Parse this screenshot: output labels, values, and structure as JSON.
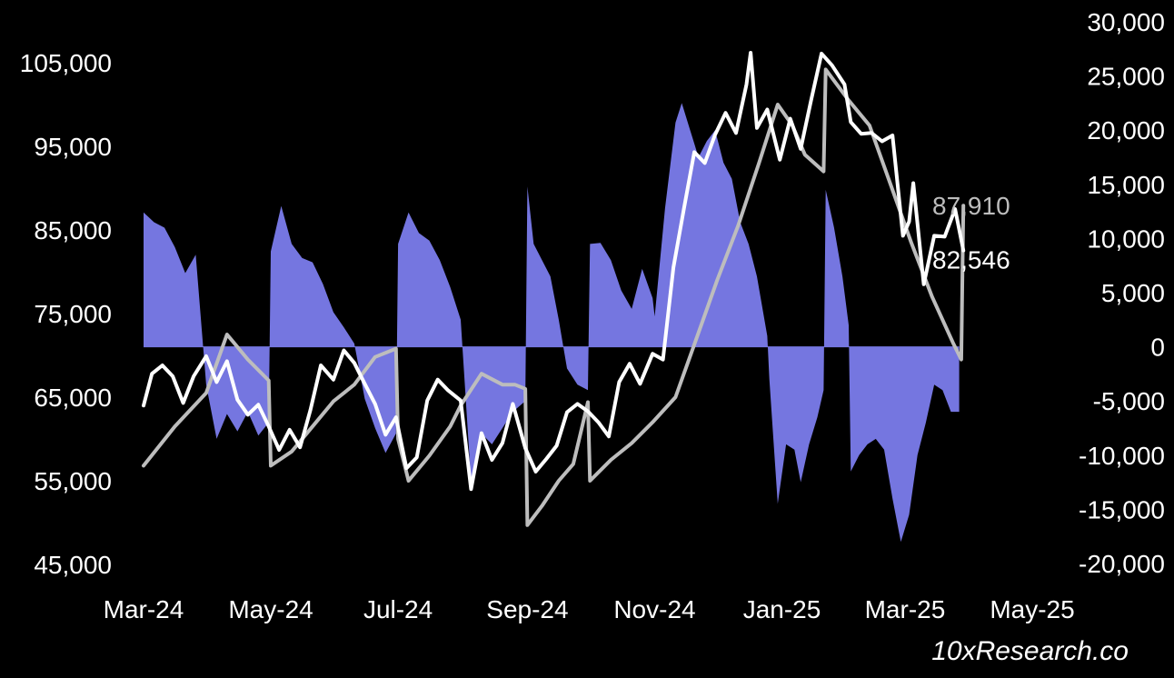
{
  "watermark": "10xResearch.co",
  "colors": {
    "background": "#000000",
    "bars": "#7576e0",
    "price": "#ffffff",
    "avg": "#bdbdbd"
  },
  "chart_data": {
    "type": "line",
    "title": "",
    "xlabel": "",
    "ylabel_left": "",
    "ylabel_right": "",
    "x_ticks": [
      "Mar-24",
      "May-24",
      "Jul-24",
      "Sep-24",
      "Nov-24",
      "Jan-25",
      "Mar-25",
      "May-25"
    ],
    "x_range": [
      "2024-03-01",
      "2025-05-01"
    ],
    "y_left_ticks": [
      "105,000",
      "95,000",
      "85,000",
      "75,000",
      "65,000",
      "55,000",
      "45,000"
    ],
    "y_left_range": [
      45000,
      105000
    ],
    "y_right_ticks": [
      "30,000",
      "25,000",
      "20,000",
      "15,000",
      "10,000",
      "5,000",
      "0",
      "-5,000",
      "-10,000",
      "-15,000",
      "-20,000"
    ],
    "y_right_range": [
      -20000,
      30000
    ],
    "grid": false,
    "legend": "none",
    "end_labels": {
      "avg": "87,910",
      "price": "82,546"
    },
    "series": [
      {
        "key": "spread",
        "kind": "area",
        "axis": "right",
        "points": [
          [
            "2024-03-01",
            12400
          ],
          [
            "2024-03-06",
            11500
          ],
          [
            "2024-03-11",
            11000
          ],
          [
            "2024-03-16",
            9200
          ],
          [
            "2024-03-21",
            6800
          ],
          [
            "2024-03-26",
            8500
          ],
          [
            "2024-03-31",
            -3500
          ],
          [
            "2024-04-05",
            -8500
          ],
          [
            "2024-04-10",
            -6200
          ],
          [
            "2024-04-15",
            -7800
          ],
          [
            "2024-04-20",
            -6000
          ],
          [
            "2024-04-25",
            -8200
          ],
          [
            "2024-04-30",
            -7000
          ],
          [
            "2024-05-01",
            8800
          ],
          [
            "2024-05-06",
            13000
          ],
          [
            "2024-05-11",
            9500
          ],
          [
            "2024-05-16",
            8200
          ],
          [
            "2024-05-21",
            7800
          ],
          [
            "2024-05-26",
            5800
          ],
          [
            "2024-05-31",
            3200
          ],
          [
            "2024-06-05",
            1800
          ],
          [
            "2024-06-10",
            300
          ],
          [
            "2024-06-15",
            -4800
          ],
          [
            "2024-06-20",
            -7500
          ],
          [
            "2024-06-25",
            -9800
          ],
          [
            "2024-06-30",
            -8000
          ],
          [
            "2024-07-01",
            9500
          ],
          [
            "2024-07-06",
            12400
          ],
          [
            "2024-07-11",
            10500
          ],
          [
            "2024-07-16",
            9800
          ],
          [
            "2024-07-21",
            8000
          ],
          [
            "2024-07-26",
            5500
          ],
          [
            "2024-07-31",
            2500
          ],
          [
            "2024-08-05",
            -12500
          ],
          [
            "2024-08-10",
            -8000
          ],
          [
            "2024-08-15",
            -9000
          ],
          [
            "2024-08-20",
            -7500
          ],
          [
            "2024-08-25",
            -6000
          ],
          [
            "2024-08-31",
            -5000
          ],
          [
            "2024-09-01",
            14800
          ],
          [
            "2024-09-04",
            9500
          ],
          [
            "2024-09-08",
            8000
          ],
          [
            "2024-09-12",
            6500
          ],
          [
            "2024-09-16",
            2500
          ],
          [
            "2024-09-20",
            -2000
          ],
          [
            "2024-09-25",
            -3500
          ],
          [
            "2024-09-30",
            -4000
          ],
          [
            "2024-10-01",
            9500
          ],
          [
            "2024-10-06",
            9600
          ],
          [
            "2024-10-11",
            8000
          ],
          [
            "2024-10-16",
            5200
          ],
          [
            "2024-10-21",
            3500
          ],
          [
            "2024-10-26",
            7200
          ],
          [
            "2024-10-31",
            4500
          ],
          [
            "2024-11-01",
            2800
          ],
          [
            "2024-11-06",
            12800
          ],
          [
            "2024-11-11",
            20700
          ],
          [
            "2024-11-14",
            22500
          ],
          [
            "2024-11-18",
            20000
          ],
          [
            "2024-11-22",
            17500
          ],
          [
            "2024-11-26",
            19000
          ],
          [
            "2024-11-30",
            20000
          ],
          [
            "2024-12-04",
            17000
          ],
          [
            "2024-12-08",
            15500
          ],
          [
            "2024-12-12",
            11500
          ],
          [
            "2024-12-16",
            9500
          ],
          [
            "2024-12-20",
            6500
          ],
          [
            "2024-12-25",
            1000
          ],
          [
            "2024-12-26",
            -3000
          ],
          [
            "2024-12-30",
            -14500
          ],
          [
            "2025-01-03",
            -9000
          ],
          [
            "2025-01-07",
            -9500
          ],
          [
            "2025-01-10",
            -12500
          ],
          [
            "2025-01-14",
            -9000
          ],
          [
            "2025-01-18",
            -6500
          ],
          [
            "2025-01-21",
            -4000
          ],
          [
            "2025-01-22",
            14500
          ],
          [
            "2025-01-26",
            11000
          ],
          [
            "2025-01-30",
            6500
          ],
          [
            "2025-02-02",
            2000
          ],
          [
            "2025-02-03",
            -11500
          ],
          [
            "2025-02-07",
            -10000
          ],
          [
            "2025-02-11",
            -9000
          ],
          [
            "2025-02-15",
            -8500
          ],
          [
            "2025-02-19",
            -9500
          ],
          [
            "2025-02-23",
            -14000
          ],
          [
            "2025-02-27",
            -18000
          ],
          [
            "2025-03-03",
            -15500
          ],
          [
            "2025-03-07",
            -10000
          ],
          [
            "2025-03-11",
            -7000
          ],
          [
            "2025-03-15",
            -3500
          ],
          [
            "2025-03-19",
            -4000
          ],
          [
            "2025-03-23",
            -6000
          ],
          [
            "2025-03-27",
            -6000
          ]
        ]
      },
      {
        "key": "avg",
        "kind": "line",
        "axis": "left",
        "points": [
          [
            "2024-03-01",
            56800
          ],
          [
            "2024-03-16",
            61500
          ],
          [
            "2024-03-31",
            65500
          ],
          [
            "2024-04-10",
            72500
          ],
          [
            "2024-04-20",
            69500
          ],
          [
            "2024-04-30",
            67000
          ],
          [
            "2024-05-01",
            56800
          ],
          [
            "2024-05-11",
            58500
          ],
          [
            "2024-05-21",
            61500
          ],
          [
            "2024-05-31",
            64500
          ],
          [
            "2024-06-10",
            66500
          ],
          [
            "2024-06-20",
            69800
          ],
          [
            "2024-06-30",
            70800
          ],
          [
            "2024-07-01",
            60000
          ],
          [
            "2024-07-06",
            55000
          ],
          [
            "2024-07-16",
            58000
          ],
          [
            "2024-07-26",
            61500
          ],
          [
            "2024-07-31",
            64000
          ],
          [
            "2024-08-10",
            67800
          ],
          [
            "2024-08-20",
            66500
          ],
          [
            "2024-08-26",
            66500
          ],
          [
            "2024-08-31",
            66000
          ],
          [
            "2024-09-01",
            49700
          ],
          [
            "2024-09-08",
            52000
          ],
          [
            "2024-09-16",
            55000
          ],
          [
            "2024-09-23",
            57000
          ],
          [
            "2024-09-30",
            64400
          ],
          [
            "2024-10-01",
            55000
          ],
          [
            "2024-10-11",
            57500
          ],
          [
            "2024-10-21",
            59500
          ],
          [
            "2024-10-31",
            62000
          ],
          [
            "2024-11-11",
            65000
          ],
          [
            "2024-11-21",
            72000
          ],
          [
            "2024-12-01",
            79000
          ],
          [
            "2024-12-11",
            85500
          ],
          [
            "2024-12-21",
            93000
          ],
          [
            "2024-12-30",
            100000
          ],
          [
            "2025-01-06",
            97500
          ],
          [
            "2025-01-12",
            94000
          ],
          [
            "2025-01-21",
            92000
          ],
          [
            "2025-01-22",
            104200
          ],
          [
            "2025-02-02",
            100500
          ],
          [
            "2025-02-12",
            97500
          ],
          [
            "2025-02-22",
            90500
          ],
          [
            "2025-03-04",
            83500
          ],
          [
            "2025-03-14",
            77000
          ],
          [
            "2025-03-24",
            71500
          ],
          [
            "2025-03-28",
            69500
          ],
          [
            "2025-03-29",
            87910
          ]
        ]
      },
      {
        "key": "price",
        "kind": "line",
        "axis": "left",
        "points": [
          [
            "2024-03-01",
            64000
          ],
          [
            "2024-03-05",
            67800
          ],
          [
            "2024-03-10",
            68800
          ],
          [
            "2024-03-15",
            67500
          ],
          [
            "2024-03-20",
            64300
          ],
          [
            "2024-03-25",
            67500
          ],
          [
            "2024-03-31",
            69900
          ],
          [
            "2024-04-05",
            66800
          ],
          [
            "2024-04-10",
            69300
          ],
          [
            "2024-04-15",
            64700
          ],
          [
            "2024-04-20",
            62900
          ],
          [
            "2024-04-25",
            64100
          ],
          [
            "2024-04-30",
            61500
          ],
          [
            "2024-05-05",
            58700
          ],
          [
            "2024-05-10",
            61100
          ],
          [
            "2024-05-15",
            59000
          ],
          [
            "2024-05-20",
            63500
          ],
          [
            "2024-05-25",
            68800
          ],
          [
            "2024-05-31",
            67100
          ],
          [
            "2024-06-05",
            70600
          ],
          [
            "2024-06-10",
            69100
          ],
          [
            "2024-06-15",
            66600
          ],
          [
            "2024-06-20",
            64200
          ],
          [
            "2024-06-25",
            60500
          ],
          [
            "2024-06-30",
            62600
          ],
          [
            "2024-07-05",
            56500
          ],
          [
            "2024-07-10",
            57800
          ],
          [
            "2024-07-15",
            64600
          ],
          [
            "2024-07-20",
            67100
          ],
          [
            "2024-07-25",
            65800
          ],
          [
            "2024-07-31",
            64600
          ],
          [
            "2024-08-05",
            54000
          ],
          [
            "2024-08-10",
            60700
          ],
          [
            "2024-08-15",
            57500
          ],
          [
            "2024-08-20",
            59500
          ],
          [
            "2024-08-25",
            64200
          ],
          [
            "2024-08-31",
            58900
          ],
          [
            "2024-09-05",
            56100
          ],
          [
            "2024-09-10",
            57600
          ],
          [
            "2024-09-15",
            59200
          ],
          [
            "2024-09-20",
            63200
          ],
          [
            "2024-09-25",
            64200
          ],
          [
            "2024-09-30",
            63300
          ],
          [
            "2024-10-05",
            62000
          ],
          [
            "2024-10-10",
            60300
          ],
          [
            "2024-10-15",
            66800
          ],
          [
            "2024-10-20",
            69000
          ],
          [
            "2024-10-25",
            66600
          ],
          [
            "2024-10-31",
            70200
          ],
          [
            "2024-11-05",
            69500
          ],
          [
            "2024-11-10",
            80500
          ],
          [
            "2024-11-15",
            87500
          ],
          [
            "2024-11-20",
            94300
          ],
          [
            "2024-11-25",
            93000
          ],
          [
            "2024-11-30",
            96400
          ],
          [
            "2024-12-05",
            99000
          ],
          [
            "2024-12-10",
            96600
          ],
          [
            "2024-12-15",
            102400
          ],
          [
            "2024-12-17",
            106200
          ],
          [
            "2024-12-20",
            97200
          ],
          [
            "2024-12-25",
            99400
          ],
          [
            "2024-12-31",
            93400
          ],
          [
            "2025-01-05",
            98300
          ],
          [
            "2025-01-10",
            94700
          ],
          [
            "2025-01-15",
            100500
          ],
          [
            "2025-01-20",
            106100
          ],
          [
            "2025-01-25",
            104700
          ],
          [
            "2025-01-31",
            102400
          ],
          [
            "2025-02-03",
            97900
          ],
          [
            "2025-02-08",
            96500
          ],
          [
            "2025-02-13",
            96600
          ],
          [
            "2025-02-18",
            95600
          ],
          [
            "2025-02-23",
            96300
          ],
          [
            "2025-02-28",
            84300
          ],
          [
            "2025-03-03",
            86000
          ],
          [
            "2025-03-05",
            90600
          ],
          [
            "2025-03-10",
            78500
          ],
          [
            "2025-03-15",
            84300
          ],
          [
            "2025-03-20",
            84200
          ],
          [
            "2025-03-25",
            87500
          ],
          [
            "2025-03-29",
            82546
          ]
        ]
      }
    ]
  }
}
